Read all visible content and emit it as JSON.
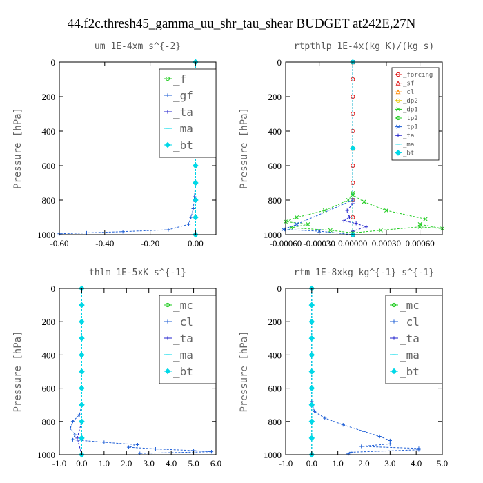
{
  "figure_title": "44.f2c.thresh45_gamma_uu_shr_tau_shear  BUDGET at242E,27N",
  "colors": {
    "green": "#22cc22",
    "blue": "#1f5fd6",
    "navy": "#2222cc",
    "cyan": "#00d8e8",
    "red": "#dd1111",
    "orange": "#ff8800",
    "yellow": "#e6c400"
  },
  "chart_data": [
    {
      "type": "line",
      "title": "um  1E-4xm s^{-2}",
      "ylabel": "Pressure [hPa]",
      "xlim": [
        -0.6,
        0.09
      ],
      "ylim": [
        1000,
        0
      ],
      "xticks": [
        -0.6,
        -0.4,
        -0.2,
        0.0
      ],
      "xtick_labels": [
        "-0.60",
        "-0.40",
        "-0.20",
        "0.00"
      ],
      "yticks": [
        0,
        200,
        400,
        600,
        800,
        1000
      ],
      "legend_style": "big",
      "series": [
        {
          "name": "_f",
          "color": "#22cc22",
          "marker": "circle",
          "values": [
            [
              0.0,
              0
            ],
            [
              0.0,
              100
            ],
            [
              0.0,
              200
            ],
            [
              0.0,
              300
            ],
            [
              0.0,
              400
            ],
            [
              0.0,
              500
            ],
            [
              0.0,
              600
            ],
            [
              0.0,
              700
            ],
            [
              0.0,
              800
            ],
            [
              0.0,
              900
            ],
            [
              0.0,
              1000
            ]
          ]
        },
        {
          "name": "_gf",
          "color": "#1f5fd6",
          "marker": "plus",
          "values": [
            [
              0.0,
              0
            ],
            [
              0.0,
              200
            ],
            [
              0.0,
              400
            ],
            [
              0.0,
              600
            ],
            [
              0.0,
              700
            ],
            [
              -0.005,
              780
            ],
            [
              -0.01,
              850
            ],
            [
              -0.02,
              900
            ],
            [
              -0.03,
              940
            ],
            [
              -0.12,
              972
            ],
            [
              -0.32,
              983
            ],
            [
              -0.48,
              990
            ],
            [
              -0.6,
              995
            ]
          ]
        },
        {
          "name": "_ta",
          "color": "#2222cc",
          "marker": "plus",
          "values": [
            [
              0.0,
              0
            ],
            [
              0.0,
              500
            ],
            [
              0.0,
              800
            ],
            [
              0.0,
              1000
            ]
          ]
        },
        {
          "name": "_ma",
          "color": "#00d8e8",
          "marker": "dash",
          "values": [
            [
              0.0,
              0
            ],
            [
              0.0,
              500
            ],
            [
              0.0,
              1000
            ]
          ]
        },
        {
          "name": "_bt",
          "color": "#00d8e8",
          "marker": "diamond",
          "values": [
            [
              0.0,
              0
            ],
            [
              0.0,
              100
            ],
            [
              0.0,
              200
            ],
            [
              0.0,
              300
            ],
            [
              0.0,
              400
            ],
            [
              0.0,
              500
            ],
            [
              0.0,
              600
            ],
            [
              0.0,
              700
            ],
            [
              0.0,
              800
            ],
            [
              0.0,
              900
            ],
            [
              0.0,
              1000
            ]
          ]
        }
      ]
    },
    {
      "type": "line",
      "title": "rtpthlp  1E-4x(kg K)/(kg s)",
      "ylabel": "Pressure [hPa]",
      "xlim": [
        -0.0006,
        0.0008
      ],
      "ylim": [
        1000,
        0
      ],
      "xticks": [
        -0.0006,
        -0.0003,
        0.0,
        0.0003,
        0.0006
      ],
      "xtick_labels": [
        "-0.00060",
        "-0.00030",
        "0.00000",
        "0.00030",
        "0.00060"
      ],
      "yticks": [
        0,
        200,
        400,
        600,
        800,
        1000
      ],
      "legend_style": "small",
      "series": [
        {
          "name": "_forcing",
          "color": "#dd1111",
          "marker": "circle",
          "values": [
            [
              0.0,
              0
            ],
            [
              0.0,
              100
            ],
            [
              0.0,
              200
            ],
            [
              0.0,
              300
            ],
            [
              0.0,
              400
            ],
            [
              0.0,
              500
            ],
            [
              0.0,
              600
            ],
            [
              0.0,
              700
            ],
            [
              0.0,
              800
            ],
            [
              0.0,
              900
            ],
            [
              0.0,
              1000
            ]
          ]
        },
        {
          "name": "_sf",
          "color": "#dd1111",
          "marker": "triangle",
          "values": [
            [
              0.0,
              0
            ],
            [
              0.0,
              500
            ],
            [
              0.0,
              1000
            ]
          ]
        },
        {
          "name": "_cl",
          "color": "#ff8800",
          "marker": "triangle",
          "values": [
            [
              0.0,
              0
            ],
            [
              0.0,
              500
            ],
            [
              0.0,
              1000
            ]
          ]
        },
        {
          "name": "_dp2",
          "color": "#e6c400",
          "marker": "circle",
          "values": [
            [
              0.0,
              0
            ],
            [
              0.0,
              500
            ],
            [
              0.0,
              1000
            ]
          ]
        },
        {
          "name": "_dp1",
          "color": "#22cc22",
          "marker": "cross",
          "values": [
            [
              0.0,
              0
            ],
            [
              0.0,
              760
            ],
            [
              -4e-05,
              800
            ],
            [
              -0.00025,
              860
            ],
            [
              -0.0005,
              900
            ],
            [
              -0.0006,
              925
            ],
            [
              -0.0004,
              940
            ],
            [
              -0.00055,
              960
            ],
            [
              -0.0002,
              975
            ],
            [
              0.0,
              990
            ],
            [
              0.00025,
              975
            ],
            [
              0.0006,
              955
            ],
            [
              0.0008,
              965
            ],
            [
              0.0006,
              940
            ],
            [
              0.00065,
              910
            ],
            [
              0.0003,
              860
            ],
            [
              0.0001,
              810
            ],
            [
              0.0,
              770
            ]
          ]
        },
        {
          "name": "_tp2",
          "color": "#22cc22",
          "marker": "circle",
          "values": [
            [
              0.0,
              0
            ],
            [
              0.0,
              500
            ],
            [
              0.0,
              1000
            ]
          ]
        },
        {
          "name": "_tp1",
          "color": "#1f5fd6",
          "marker": "cross",
          "values": [
            [
              0.0,
              0
            ],
            [
              0.0,
              800
            ],
            [
              -0.0005,
              940
            ],
            [
              -0.00062,
              970
            ],
            [
              -0.0003,
              980
            ],
            [
              0.0,
              1000
            ]
          ]
        },
        {
          "name": "_ta",
          "color": "#2222cc",
          "marker": "plus",
          "values": [
            [
              0.0,
              0
            ],
            [
              0.0,
              820
            ],
            [
              -5e-05,
              860
            ],
            [
              -3e-05,
              900
            ],
            [
              -8e-05,
              920
            ],
            [
              3e-05,
              935
            ],
            [
              0.00012,
              955
            ],
            [
              0.0,
              980
            ],
            [
              0.0,
              1000
            ]
          ]
        },
        {
          "name": "_ma",
          "color": "#00d8e8",
          "marker": "dash",
          "values": [
            [
              0.0,
              0
            ],
            [
              0.0,
              500
            ],
            [
              0.0,
              1000
            ]
          ]
        },
        {
          "name": "_bt",
          "color": "#00d8e8",
          "marker": "diamond",
          "values": [
            [
              0.0,
              0
            ],
            [
              0.0,
              500
            ],
            [
              0.0,
              1000
            ]
          ]
        }
      ]
    },
    {
      "type": "line",
      "title": "thlm  1E-5xK s^{-1}",
      "ylabel": "Pressure [hPa]",
      "xlim": [
        -1.0,
        6.0
      ],
      "ylim": [
        1000,
        0
      ],
      "xticks": [
        -1.0,
        0.0,
        1.0,
        2.0,
        3.0,
        4.0,
        5.0,
        6.0
      ],
      "xtick_labels": [
        "-1.0",
        "0.0",
        "1.0",
        "2.0",
        "3.0",
        "4.0",
        "5.0",
        "6.0"
      ],
      "yticks": [
        0,
        200,
        400,
        600,
        800,
        1000
      ],
      "legend_style": "big",
      "series": [
        {
          "name": "_mc",
          "color": "#22cc22",
          "marker": "circle",
          "values": [
            [
              0.0,
              0
            ],
            [
              0.0,
              100
            ],
            [
              0.0,
              200
            ],
            [
              0.0,
              300
            ],
            [
              0.0,
              400
            ],
            [
              0.0,
              500
            ],
            [
              0.0,
              600
            ],
            [
              0.0,
              700
            ],
            [
              0.0,
              800
            ],
            [
              0.0,
              900
            ],
            [
              0.0,
              1000
            ]
          ]
        },
        {
          "name": "_cl",
          "color": "#1f5fd6",
          "marker": "plus",
          "values": [
            [
              0.0,
              0
            ],
            [
              0.0,
              700
            ],
            [
              -0.1,
              760
            ],
            [
              -0.4,
              800
            ],
            [
              -0.5,
              840
            ],
            [
              -0.3,
              880
            ],
            [
              -0.4,
              910
            ],
            [
              1.0,
              925
            ],
            [
              2.5,
              940
            ],
            [
              2.1,
              955
            ],
            [
              3.3,
              965
            ],
            [
              5.0,
              975
            ],
            [
              5.8,
              982
            ],
            [
              2.6,
              992
            ]
          ]
        },
        {
          "name": "_ta",
          "color": "#2222cc",
          "marker": "plus",
          "values": [
            [
              0.0,
              0
            ],
            [
              0.0,
              800
            ],
            [
              -0.2,
              900
            ],
            [
              0.0,
              1000
            ]
          ]
        },
        {
          "name": "_ma",
          "color": "#00d8e8",
          "marker": "dash",
          "values": [
            [
              0.0,
              0
            ],
            [
              0.0,
              500
            ],
            [
              0.0,
              1000
            ]
          ]
        },
        {
          "name": "_bt",
          "color": "#00d8e8",
          "marker": "diamond",
          "values": [
            [
              0.0,
              0
            ],
            [
              0.0,
              100
            ],
            [
              0.0,
              200
            ],
            [
              0.0,
              300
            ],
            [
              0.0,
              400
            ],
            [
              0.0,
              500
            ],
            [
              0.0,
              600
            ],
            [
              0.0,
              700
            ],
            [
              0.0,
              800
            ],
            [
              0.0,
              900
            ],
            [
              0.0,
              1000
            ]
          ]
        }
      ]
    },
    {
      "type": "line",
      "title": "rtm  1E-8xkg kg^{-1} s^{-1}",
      "ylabel": "Pressure [hPa]",
      "xlim": [
        -1.0,
        5.0
      ],
      "ylim": [
        1000,
        0
      ],
      "xticks": [
        -1.0,
        0.0,
        1.0,
        2.0,
        3.0,
        4.0,
        5.0
      ],
      "xtick_labels": [
        "-1.0",
        "0.0",
        "1.0",
        "2.0",
        "3.0",
        "4.0",
        "5.0"
      ],
      "yticks": [
        0,
        200,
        400,
        600,
        800,
        1000
      ],
      "legend_style": "big",
      "series": [
        {
          "name": "_mc",
          "color": "#22cc22",
          "marker": "circle",
          "values": [
            [
              0.0,
              0
            ],
            [
              0.0,
              100
            ],
            [
              0.0,
              200
            ],
            [
              0.0,
              300
            ],
            [
              0.0,
              400
            ],
            [
              0.0,
              500
            ],
            [
              0.0,
              600
            ],
            [
              0.0,
              700
            ],
            [
              0.0,
              800
            ],
            [
              0.0,
              900
            ],
            [
              0.0,
              1000
            ]
          ]
        },
        {
          "name": "_cl",
          "color": "#1f5fd6",
          "marker": "plus",
          "values": [
            [
              0.0,
              0
            ],
            [
              0.0,
              680
            ],
            [
              0.1,
              740
            ],
            [
              0.5,
              780
            ],
            [
              1.2,
              820
            ],
            [
              2.0,
              860
            ],
            [
              2.6,
              890
            ],
            [
              3.0,
              915
            ],
            [
              3.0,
              935
            ],
            [
              1.9,
              950
            ],
            [
              4.1,
              962
            ],
            [
              4.1,
              970
            ],
            [
              1.5,
              985
            ],
            [
              1.4,
              995
            ]
          ]
        },
        {
          "name": "_ta",
          "color": "#2222cc",
          "marker": "plus",
          "values": [
            [
              0.0,
              0
            ],
            [
              0.0,
              500
            ],
            [
              0.0,
              1000
            ]
          ]
        },
        {
          "name": "_ma",
          "color": "#00d8e8",
          "marker": "dash",
          "values": [
            [
              0.0,
              0
            ],
            [
              0.0,
              500
            ],
            [
              0.0,
              1000
            ]
          ]
        },
        {
          "name": "_bt",
          "color": "#00d8e8",
          "marker": "diamond",
          "values": [
            [
              0.0,
              0
            ],
            [
              0.0,
              100
            ],
            [
              0.0,
              200
            ],
            [
              0.0,
              300
            ],
            [
              0.0,
              400
            ],
            [
              0.0,
              500
            ],
            [
              0.0,
              600
            ],
            [
              0.0,
              700
            ],
            [
              0.0,
              800
            ],
            [
              0.0,
              900
            ],
            [
              0.0,
              1000
            ]
          ]
        }
      ]
    }
  ]
}
